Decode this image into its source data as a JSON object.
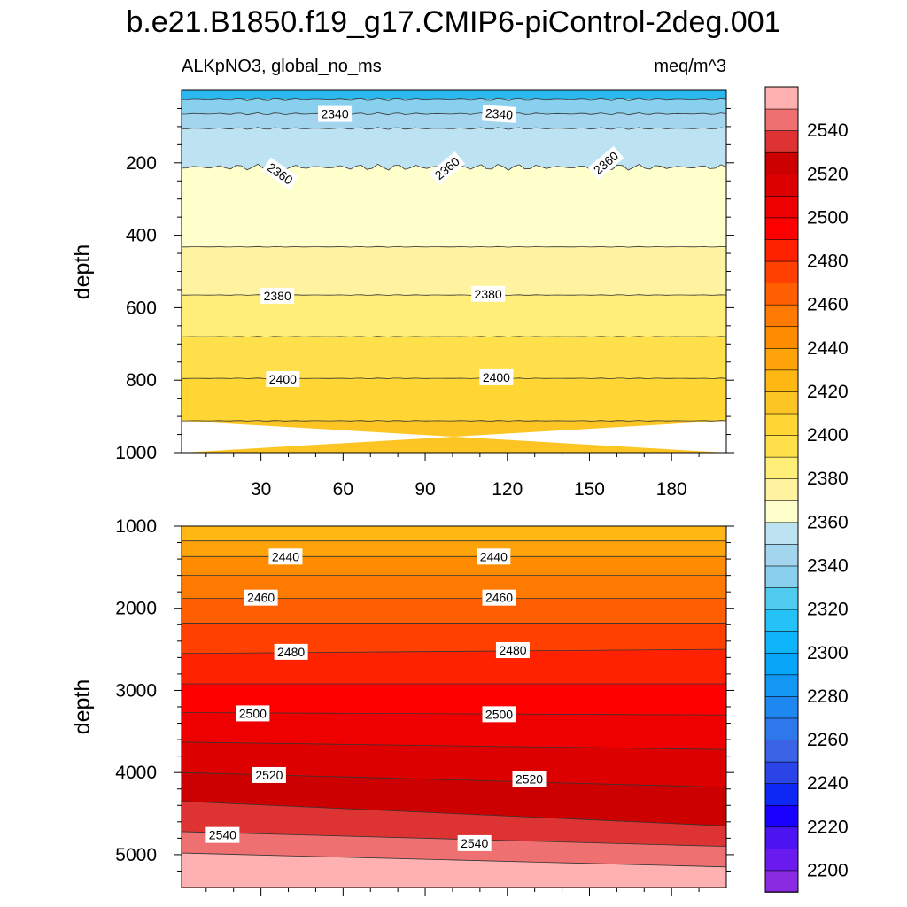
{
  "title": "b.e21.B1850.f19_g17.CMIP6-piControl-2deg.001",
  "subtitle_left": "ALKpNO3, global_no_ms",
  "subtitle_right": "meq/m^3",
  "chart_data": [
    {
      "type": "contour",
      "panel": "upper",
      "xlabel": "",
      "ylabel": "depth",
      "xlim": [
        1,
        200
      ],
      "ylim": [
        0,
        1000
      ],
      "y_inverted": true,
      "x_ticks": [
        30,
        60,
        90,
        120,
        150,
        180
      ],
      "y_ticks": [
        200,
        400,
        600,
        800,
        1000
      ],
      "band_boundaries": [
        {
          "level": 2330,
          "depth": 25
        },
        {
          "level": 2340,
          "depth": 65
        },
        {
          "level": 2350,
          "depth": 105
        },
        {
          "level": 2360,
          "depth": 212
        },
        {
          "level": 2370,
          "depth": 432
        },
        {
          "level": 2380,
          "depth": 565
        },
        {
          "level": 2390,
          "depth": 680
        },
        {
          "level": 2400,
          "depth": 795
        },
        {
          "level": 2410,
          "depth": 912
        }
      ],
      "bottom_level": 2410,
      "contour_labels": [
        {
          "text": "2340",
          "x": 57,
          "depth": 65
        },
        {
          "text": "2340",
          "x": 117,
          "depth": 65
        },
        {
          "text": "2360",
          "x": 37,
          "depth": 230
        },
        {
          "text": "2360",
          "x": 98,
          "depth": 215
        },
        {
          "text": "2360",
          "x": 156,
          "depth": 200
        },
        {
          "text": "2380",
          "x": 36,
          "depth": 567
        },
        {
          "text": "2380",
          "x": 113,
          "depth": 562
        },
        {
          "text": "2400",
          "x": 38,
          "depth": 797
        },
        {
          "text": "2400",
          "x": 116,
          "depth": 792
        }
      ]
    },
    {
      "type": "contour",
      "panel": "lower",
      "xlabel": "",
      "ylabel": "depth",
      "xlim": [
        1,
        200
      ],
      "ylim": [
        1000,
        5400
      ],
      "y_inverted": true,
      "x_ticks": [],
      "y_ticks": [
        1000,
        2000,
        3000,
        4000,
        5000
      ],
      "top_level": 2420,
      "band_boundaries": [
        {
          "level": 2430,
          "d0": 1180,
          "d1": 1180
        },
        {
          "level": 2440,
          "d0": 1370,
          "d1": 1370
        },
        {
          "level": 2450,
          "d0": 1600,
          "d1": 1600
        },
        {
          "level": 2460,
          "d0": 1880,
          "d1": 1880
        },
        {
          "level": 2470,
          "d0": 2180,
          "d1": 2180
        },
        {
          "level": 2480,
          "d0": 2550,
          "d1": 2500
        },
        {
          "level": 2490,
          "d0": 2920,
          "d1": 2920
        },
        {
          "level": 2500,
          "d0": 3270,
          "d1": 3300
        },
        {
          "level": 2510,
          "d0": 3630,
          "d1": 3720
        },
        {
          "level": 2520,
          "d0": 4000,
          "d1": 4180
        },
        {
          "level": 2530,
          "d0": 4350,
          "d1": 4650
        },
        {
          "level": 2540,
          "d0": 4720,
          "d1": 4900
        },
        {
          "level": 2550,
          "d0": 4980,
          "d1": 5150
        }
      ],
      "contour_labels": [
        {
          "text": "2440",
          "x": 39,
          "depth": 1370
        },
        {
          "text": "2440",
          "x": 115,
          "depth": 1370
        },
        {
          "text": "2460",
          "x": 30,
          "depth": 1870
        },
        {
          "text": "2460",
          "x": 117,
          "depth": 1870
        },
        {
          "text": "2480",
          "x": 41,
          "depth": 2530
        },
        {
          "text": "2480",
          "x": 122,
          "depth": 2510
        },
        {
          "text": "2500",
          "x": 27,
          "depth": 3280
        },
        {
          "text": "2500",
          "x": 117,
          "depth": 3290
        },
        {
          "text": "2520",
          "x": 33,
          "depth": 4030
        },
        {
          "text": "2520",
          "x": 128,
          "depth": 4080
        },
        {
          "text": "2540",
          "x": 16,
          "depth": 4760
        },
        {
          "text": "2540",
          "x": 108,
          "depth": 4860
        }
      ]
    }
  ],
  "colorbar": {
    "levels": [
      2200,
      2210,
      2220,
      2230,
      2240,
      2250,
      2260,
      2270,
      2280,
      2290,
      2300,
      2310,
      2320,
      2330,
      2340,
      2350,
      2360,
      2370,
      2380,
      2390,
      2400,
      2410,
      2420,
      2430,
      2440,
      2450,
      2460,
      2470,
      2480,
      2490,
      2500,
      2510,
      2520,
      2530,
      2540,
      2550
    ],
    "colors": [
      "#8a2be2",
      "#6a1aef",
      "#4b14f0",
      "#1a00ff",
      "#0d28f5",
      "#2a44e8",
      "#3a63e6",
      "#2f78ec",
      "#1e88f0",
      "#1496f5",
      "#08a6f8",
      "#0fb5fb",
      "#25c2f8",
      "#4fcbf0",
      "#88d0ee",
      "#a3d6ee",
      "#bde3f2",
      "#ffffcc",
      "#fff3a0",
      "#ffee77",
      "#ffe04a",
      "#ffd633",
      "#fdc524",
      "#ffb714",
      "#ffa30a",
      "#ff8c00",
      "#ff7a00",
      "#ff5f00",
      "#ff4000",
      "#ff2200",
      "#ff0000",
      "#ee0000",
      "#dd0000",
      "#cc0000",
      "#dd3333",
      "#ee7070",
      "#ffb0b0"
    ],
    "tick_labels": [
      "2200",
      "2220",
      "2240",
      "2260",
      "2280",
      "2300",
      "2320",
      "2340",
      "2360",
      "2380",
      "2400",
      "2420",
      "2440",
      "2460",
      "2480",
      "2500",
      "2520",
      "2540"
    ]
  }
}
